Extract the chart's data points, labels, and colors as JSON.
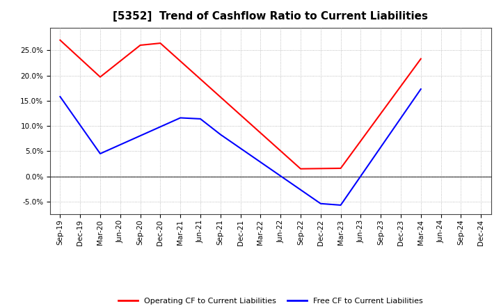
{
  "title": "[5352]  Trend of Cashflow Ratio to Current Liabilities",
  "x_labels": [
    "Sep-19",
    "Dec-19",
    "Mar-20",
    "Jun-20",
    "Sep-20",
    "Dec-20",
    "Mar-21",
    "Jun-21",
    "Sep-21",
    "Dec-21",
    "Mar-22",
    "Jun-22",
    "Sep-22",
    "Dec-22",
    "Mar-23",
    "Jun-23",
    "Sep-23",
    "Dec-23",
    "Mar-24",
    "Jun-24",
    "Sep-24",
    "Dec-24"
  ],
  "op_x": [
    0,
    2,
    4,
    5,
    12,
    14,
    18
  ],
  "op_y": [
    0.27,
    0.197,
    0.26,
    0.264,
    0.015,
    0.016,
    0.233
  ],
  "free_x": [
    0,
    2,
    6,
    7,
    8,
    13,
    14,
    18
  ],
  "free_y": [
    0.158,
    0.045,
    0.116,
    0.114,
    0.083,
    -0.054,
    -0.057,
    0.173
  ],
  "op_color": "#ff0000",
  "free_color": "#0000ff",
  "ylim": [
    -0.075,
    0.295
  ],
  "yticks": [
    -0.05,
    0.0,
    0.05,
    0.1,
    0.15,
    0.2,
    0.25
  ],
  "background_color": "#ffffff",
  "grid_color": "#aaaaaa",
  "title_fontsize": 11,
  "legend_fontsize": 8,
  "tick_fontsize": 7.5
}
